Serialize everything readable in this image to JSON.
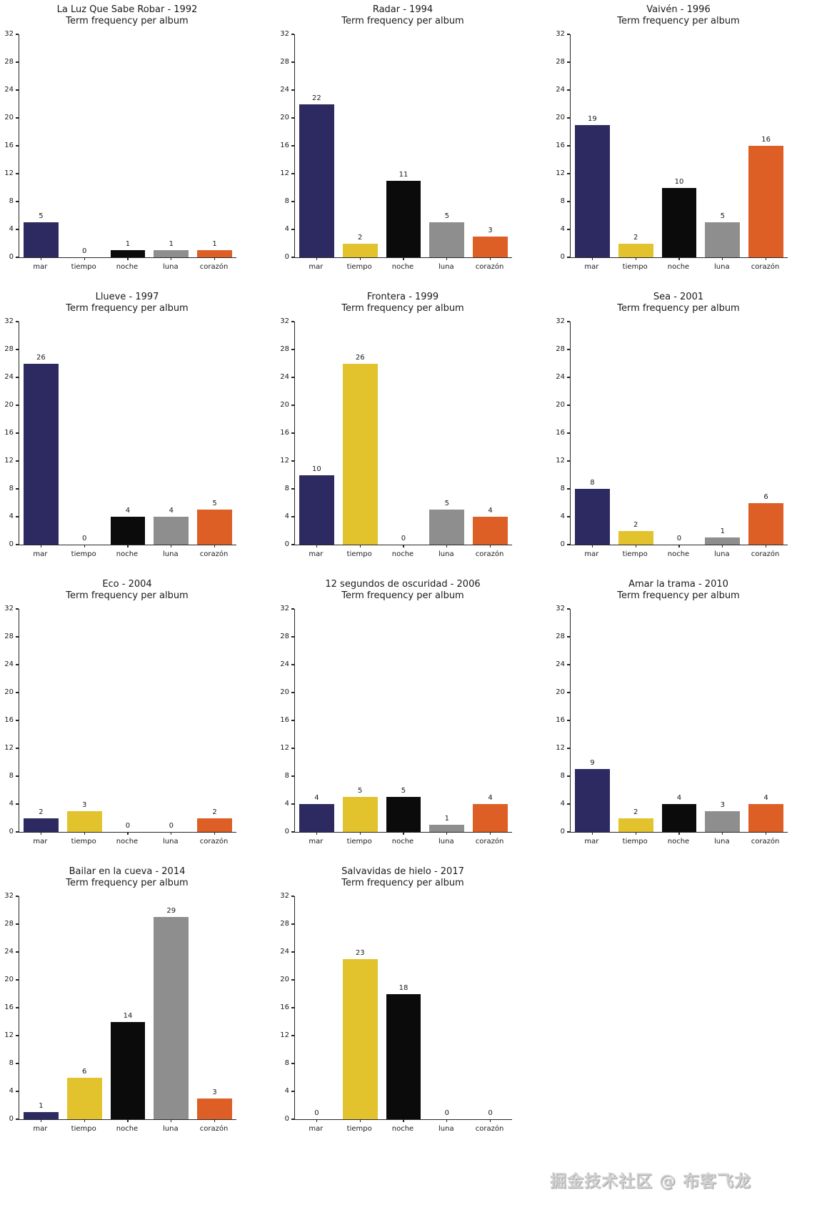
{
  "watermark": "掘金技术社区 @ 布客飞龙",
  "bar_colors": [
    "#2d2a62",
    "#e2c32d",
    "#0b0b0b",
    "#8e8e8e",
    "#dd5f26"
  ],
  "axis_color": "#262626",
  "yticks": [
    0,
    4,
    8,
    12,
    16,
    20,
    24,
    28,
    32
  ],
  "chart_data": [
    {
      "type": "bar",
      "title": "La Luz Que Sabe Robar - 1992",
      "subtitle": "Term frequency per album",
      "categories": [
        "mar",
        "tiempo",
        "noche",
        "luna",
        "corazón"
      ],
      "values": [
        5,
        0,
        1,
        1,
        1
      ],
      "xlabel": "",
      "ylabel": "",
      "ylim": [
        0,
        32
      ],
      "grid": false,
      "legend": "none"
    },
    {
      "type": "bar",
      "title": "Radar - 1994",
      "subtitle": "Term frequency per album",
      "categories": [
        "mar",
        "tiempo",
        "noche",
        "luna",
        "corazón"
      ],
      "values": [
        22,
        2,
        11,
        5,
        3
      ],
      "xlabel": "",
      "ylabel": "",
      "ylim": [
        0,
        32
      ],
      "grid": false,
      "legend": "none"
    },
    {
      "type": "bar",
      "title": "Vaivén - 1996",
      "subtitle": "Term frequency per album",
      "categories": [
        "mar",
        "tiempo",
        "noche",
        "luna",
        "corazón"
      ],
      "values": [
        19,
        2,
        10,
        5,
        16
      ],
      "xlabel": "",
      "ylabel": "",
      "ylim": [
        0,
        32
      ],
      "grid": false,
      "legend": "none"
    },
    {
      "type": "bar",
      "title": "Llueve - 1997",
      "subtitle": "Term frequency per album",
      "categories": [
        "mar",
        "tiempo",
        "noche",
        "luna",
        "corazón"
      ],
      "values": [
        26,
        0,
        4,
        4,
        5
      ],
      "xlabel": "",
      "ylabel": "",
      "ylim": [
        0,
        32
      ],
      "grid": false,
      "legend": "none"
    },
    {
      "type": "bar",
      "title": "Frontera - 1999",
      "subtitle": "Term frequency per album",
      "categories": [
        "mar",
        "tiempo",
        "noche",
        "luna",
        "corazón"
      ],
      "values": [
        10,
        26,
        0,
        5,
        4
      ],
      "xlabel": "",
      "ylabel": "",
      "ylim": [
        0,
        32
      ],
      "grid": false,
      "legend": "none"
    },
    {
      "type": "bar",
      "title": "Sea - 2001",
      "subtitle": "Term frequency per album",
      "categories": [
        "mar",
        "tiempo",
        "noche",
        "luna",
        "corazón"
      ],
      "values": [
        8,
        2,
        0,
        1,
        6
      ],
      "xlabel": "",
      "ylabel": "",
      "ylim": [
        0,
        32
      ],
      "grid": false,
      "legend": "none"
    },
    {
      "type": "bar",
      "title": "Eco - 2004",
      "subtitle": "Term frequency per album",
      "categories": [
        "mar",
        "tiempo",
        "noche",
        "luna",
        "corazón"
      ],
      "values": [
        2,
        3,
        0,
        0,
        2
      ],
      "xlabel": "",
      "ylabel": "",
      "ylim": [
        0,
        32
      ],
      "grid": false,
      "legend": "none"
    },
    {
      "type": "bar",
      "title": "12 segundos de oscuridad - 2006",
      "subtitle": "Term frequency per album",
      "categories": [
        "mar",
        "tiempo",
        "noche",
        "luna",
        "corazón"
      ],
      "values": [
        4,
        5,
        5,
        1,
        4
      ],
      "xlabel": "",
      "ylabel": "",
      "ylim": [
        0,
        32
      ],
      "grid": false,
      "legend": "none"
    },
    {
      "type": "bar",
      "title": "Amar la trama - 2010",
      "subtitle": "Term frequency per album",
      "categories": [
        "mar",
        "tiempo",
        "noche",
        "luna",
        "corazón"
      ],
      "values": [
        9,
        2,
        4,
        3,
        4
      ],
      "xlabel": "",
      "ylabel": "",
      "ylim": [
        0,
        32
      ],
      "grid": false,
      "legend": "none"
    },
    {
      "type": "bar",
      "title": "Bailar en la cueva - 2014",
      "subtitle": "Term frequency per album",
      "categories": [
        "mar",
        "tiempo",
        "noche",
        "luna",
        "corazón"
      ],
      "values": [
        1,
        6,
        14,
        29,
        3
      ],
      "xlabel": "",
      "ylabel": "",
      "ylim": [
        0,
        32
      ],
      "grid": false,
      "legend": "none"
    },
    {
      "type": "bar",
      "title": "Salvavidas de hielo - 2017",
      "subtitle": "Term frequency per album",
      "categories": [
        "mar",
        "tiempo",
        "noche",
        "luna",
        "corazón"
      ],
      "values": [
        0,
        23,
        18,
        0,
        0
      ],
      "xlabel": "",
      "ylabel": "",
      "ylim": [
        0,
        32
      ],
      "grid": false,
      "legend": "none"
    }
  ]
}
